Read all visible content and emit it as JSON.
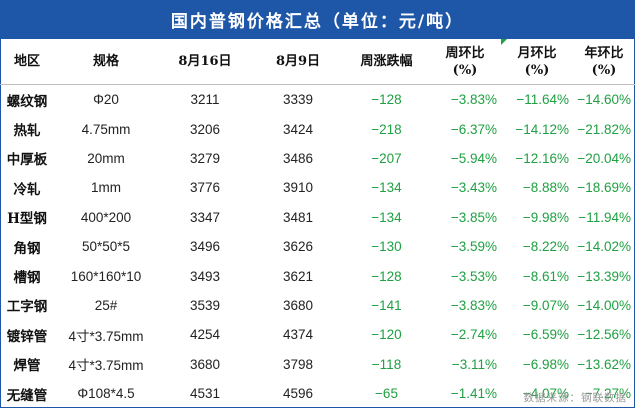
{
  "title": "国内普钢价格汇总（单位：元/吨）",
  "headers": {
    "region": "地区",
    "spec": "规格",
    "date1": "8月16日",
    "date2": "8月9日",
    "weekly_change": "周涨跌幅",
    "wow_line1": "周环比",
    "wow_line2": "(%)",
    "mom_line1": "月环比",
    "mom_line2": "(%)",
    "yoy_line1": "年环比",
    "yoy_line2": "(%)"
  },
  "rows": [
    {
      "name": "螺纹钢",
      "spec": "Φ20",
      "aug16": "3211",
      "aug9": "3339",
      "change": "−128",
      "wow": "−3.83%",
      "mom": "−11.64%",
      "yoy": "−14.60%"
    },
    {
      "name": "热轧",
      "spec": "4.75mm",
      "aug16": "3206",
      "aug9": "3424",
      "change": "−218",
      "wow": "−6.37%",
      "mom": "−14.12%",
      "yoy": "−21.82%"
    },
    {
      "name": "中厚板",
      "spec": "20mm",
      "aug16": "3279",
      "aug9": "3486",
      "change": "−207",
      "wow": "−5.94%",
      "mom": "−12.16%",
      "yoy": "−20.04%"
    },
    {
      "name": "冷轧",
      "spec": "1mm",
      "aug16": "3776",
      "aug9": "3910",
      "change": "−134",
      "wow": "−3.43%",
      "mom": "−8.88%",
      "yoy": "−18.69%"
    },
    {
      "name": "H型钢",
      "spec": "400*200",
      "aug16": "3347",
      "aug9": "3481",
      "change": "−134",
      "wow": "−3.85%",
      "mom": "−9.98%",
      "yoy": "−11.94%"
    },
    {
      "name": "角钢",
      "spec": "50*50*5",
      "aug16": "3496",
      "aug9": "3626",
      "change": "−130",
      "wow": "−3.59%",
      "mom": "−8.22%",
      "yoy": "−14.02%"
    },
    {
      "name": "槽钢",
      "spec": "160*160*10",
      "aug16": "3493",
      "aug9": "3621",
      "change": "−128",
      "wow": "−3.53%",
      "mom": "−8.61%",
      "yoy": "−13.39%"
    },
    {
      "name": "工字钢",
      "spec": "25#",
      "aug16": "3539",
      "aug9": "3680",
      "change": "−141",
      "wow": "−3.83%",
      "mom": "−9.07%",
      "yoy": "−14.00%"
    },
    {
      "name": "镀锌管",
      "spec": "4寸*3.75mm",
      "aug16": "4254",
      "aug9": "4374",
      "change": "−120",
      "wow": "−2.74%",
      "mom": "−6.59%",
      "yoy": "−12.56%"
    },
    {
      "name": "焊管",
      "spec": "4寸*3.75mm",
      "aug16": "3680",
      "aug9": "3798",
      "change": "−118",
      "wow": "−3.11%",
      "mom": "−6.98%",
      "yoy": "−13.62%"
    },
    {
      "name": "无缝管",
      "spec": "Φ108*4.5",
      "aug16": "4531",
      "aug9": "4596",
      "change": "−65",
      "wow": "−1.41%",
      "mom": "−4.07%",
      "yoy": "−7.27%"
    }
  ],
  "source": "数据来源：钢联数据",
  "colors": {
    "title_bg": "#1e56a8",
    "negative": "#1fa042"
  }
}
